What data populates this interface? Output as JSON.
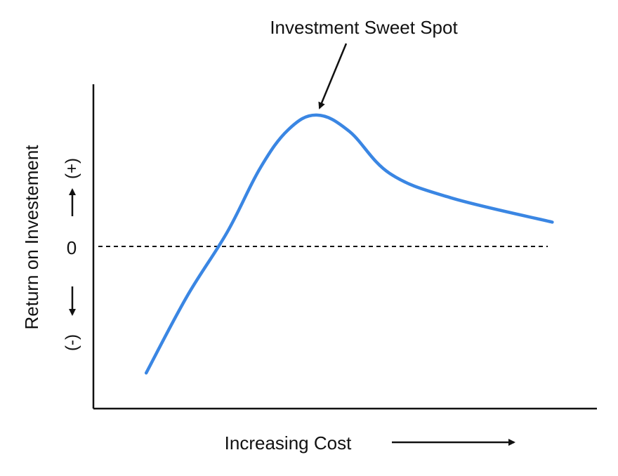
{
  "chart_data": {
    "type": "line",
    "annotation": "Investment Sweet Spot",
    "xlabel": "Increasing Cost",
    "ylabel": "Return  on Investement",
    "y_positive_label": "(+)",
    "y_negative_label": "(-)",
    "zero_label": "0",
    "x": [
      0.0,
      0.1,
      0.2,
      0.28,
      0.35,
      0.42,
      0.5,
      0.6,
      0.75,
      1.0
    ],
    "y": [
      -0.78,
      -0.31,
      0.09,
      0.48,
      0.72,
      0.81,
      0.71,
      0.45,
      0.3,
      0.15
    ],
    "xlim": [
      -0.13,
      1.11
    ],
    "ylim": [
      -1.0,
      1.0
    ],
    "baseline": 0,
    "colors": {
      "line": "#3a86e3",
      "axis": "#111111",
      "baseline": "#111111"
    }
  }
}
